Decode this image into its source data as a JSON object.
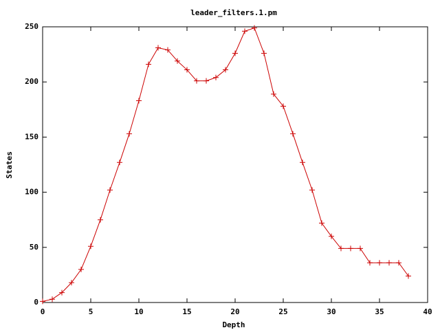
{
  "chart_data": {
    "type": "line",
    "title": "leader_filters.1.pm",
    "x_label": "Depth",
    "y_label": "States",
    "x": [
      0,
      1,
      2,
      3,
      4,
      5,
      6,
      7,
      8,
      9,
      10,
      11,
      12,
      13,
      14,
      15,
      16,
      17,
      18,
      19,
      20,
      21,
      22,
      23,
      24,
      25,
      26,
      27,
      28,
      29,
      30,
      31,
      32,
      33,
      34,
      35,
      36,
      37,
      38
    ],
    "series": [
      {
        "color": "#cc0000",
        "values": [
          1,
          3,
          9,
          18,
          30,
          51,
          75,
          102,
          127,
          153,
          183,
          216,
          231,
          229,
          219,
          211,
          201,
          201,
          204,
          211,
          226,
          246,
          249,
          226,
          189,
          178,
          153,
          127,
          102,
          72,
          60,
          49,
          49,
          49,
          36,
          36,
          36,
          36,
          24
        ]
      }
    ],
    "xlim": [
      0,
      40
    ],
    "xticks": [
      0,
      5,
      10,
      15,
      20,
      25,
      30,
      35,
      40
    ],
    "ylim": [
      0,
      250
    ],
    "yticks": [
      0,
      50,
      100,
      150,
      200,
      250
    ]
  }
}
